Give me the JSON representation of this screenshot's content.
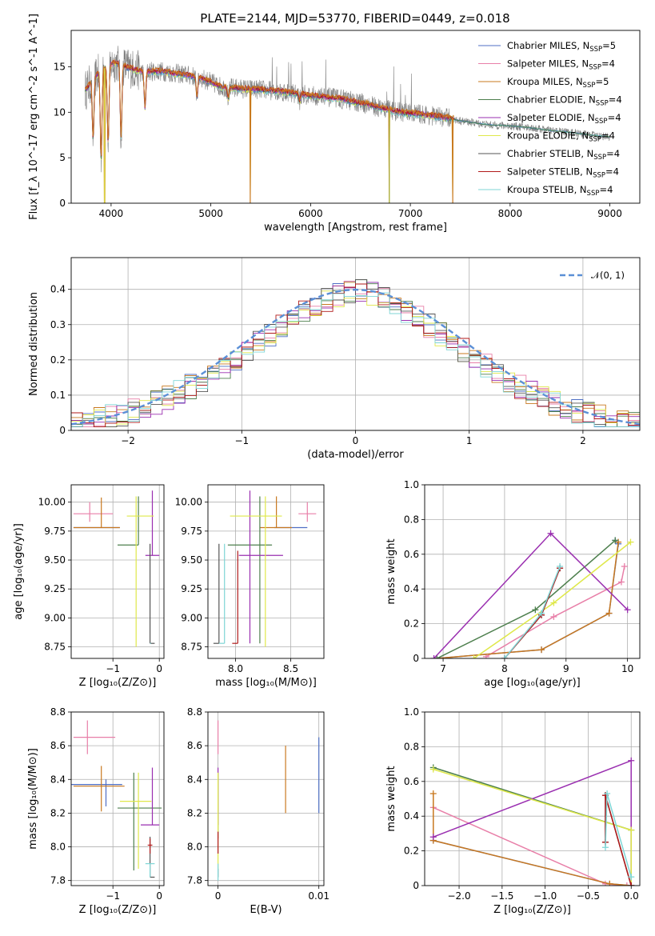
{
  "title": "PLATE=2144, MJD=53770, FIBERID=0449, z=0.018",
  "series_colors": [
    "#4f6fc4",
    "#e87fa8",
    "#c8781f",
    "#4d7f4d",
    "#9a2fb0",
    "#dfe84a",
    "#555555",
    "#b11a1a",
    "#7fd6d6"
  ],
  "series_names": [
    {
      "main": "Chabrier MILES, N",
      "sub": "SSP",
      "tail": "=5"
    },
    {
      "main": "Salpeter MILES, N",
      "sub": "SSP",
      "tail": "=4"
    },
    {
      "main": "Kroupa MILES, N",
      "sub": "SSP",
      "tail": "=5"
    },
    {
      "main": "Chabrier ELODIE, N",
      "sub": "SSP",
      "tail": "=4"
    },
    {
      "main": "Salpeter ELODIE, N",
      "sub": "SSP",
      "tail": "=4"
    },
    {
      "main": "Kroupa ELODIE, N",
      "sub": "SSP",
      "tail": "=4"
    },
    {
      "main": "Chabrier STELIB, N",
      "sub": "SSP",
      "tail": "=4"
    },
    {
      "main": "Salpeter STELIB, N",
      "sub": "SSP",
      "tail": "=4"
    },
    {
      "main": "Kroupa STELIB, N",
      "sub": "SSP",
      "tail": "=4"
    }
  ],
  "chart_data": [
    {
      "type": "line",
      "id": "spectrum",
      "xlabel": "wavelength [Angstrom, rest frame]",
      "ylabel": "Flux [f_λ 10^-17 erg cm^-2 s^-1 A^-1]",
      "xlim": [
        3600,
        9300
      ],
      "ylim": [
        0,
        19
      ],
      "xticks": [
        4000,
        5000,
        6000,
        7000,
        8000,
        9000
      ],
      "yticks": [
        0,
        5,
        10,
        15
      ],
      "legend": "top-right",
      "continuum": {
        "x": [
          3750,
          3850,
          3950,
          4050,
          4150,
          4300,
          4500,
          4700,
          4900,
          5100,
          5300,
          5500,
          5700,
          5900,
          6100,
          6300,
          6500,
          6700,
          6900,
          7100,
          7300,
          7420
        ],
        "y": [
          12.5,
          14.0,
          15.0,
          15.5,
          15.0,
          14.5,
          14.5,
          14.2,
          13.8,
          12.8,
          12.6,
          12.5,
          12.3,
          12.0,
          11.7,
          11.5,
          11.0,
          10.5,
          10.0,
          9.8,
          9.5,
          9.3
        ]
      },
      "model_tail": {
        "x": [
          7420,
          7600,
          7800,
          8000,
          8200,
          8400,
          8600,
          8800,
          9000
        ],
        "y": [
          9.2,
          8.9,
          8.6,
          8.5,
          8.3,
          8.0,
          7.8,
          7.5,
          7.3
        ]
      },
      "absorption_dips": [
        [
          3820,
          7.0
        ],
        [
          3900,
          4.8
        ],
        [
          3970,
          6.5
        ],
        [
          4100,
          7.2
        ],
        [
          4340,
          10.5
        ],
        [
          4861,
          11.8
        ],
        [
          5175,
          11.5
        ],
        [
          5890,
          11.2
        ],
        [
          6563,
          11.0
        ]
      ],
      "artifacts": [
        [
          3935,
          0
        ],
        [
          5395,
          0
        ],
        [
          6790,
          0
        ],
        [
          7425,
          0
        ]
      ]
    },
    {
      "type": "step",
      "id": "residuals",
      "xlabel": "(data-model)/error",
      "ylabel": "Normed distribution",
      "xlim": [
        -2.5,
        2.5
      ],
      "ylim": [
        0,
        0.49
      ],
      "xticks": [
        -2,
        -1,
        0,
        1,
        2
      ],
      "yticks": [
        0.0,
        0.1,
        0.2,
        0.3,
        0.4
      ],
      "bin_width": 0.1,
      "gaussian_label": "𝒩(0, 1)",
      "gaussian": {
        "mean": 0,
        "sigma": 1
      },
      "legend": "top-right"
    },
    {
      "type": "errorbar",
      "id": "age-vs-Z",
      "xlabel": "Z [log₁₀(Z/Z⊙)]",
      "ylabel": "age  [log₁₀(age/yr)]",
      "xlim": [
        -1.9,
        0.1
      ],
      "ylim": [
        8.65,
        10.15
      ],
      "xticks": [
        -1,
        0
      ],
      "yticks": [
        8.75,
        9.0,
        9.25,
        9.5,
        9.75,
        10.0
      ],
      "points": [
        {
          "s": 0,
          "x": -0.85,
          "y": 9.78,
          "ex": [
            1.0,
            0.0
          ],
          "ey": [
            0.0,
            0.0
          ]
        },
        {
          "s": 1,
          "x": -1.5,
          "y": 9.9,
          "ex": [
            0.35,
            0.5
          ],
          "ey": [
            0.07,
            0.1
          ]
        },
        {
          "s": 2,
          "x": -1.25,
          "y": 9.78,
          "ex": [
            0.6,
            0.4
          ],
          "ey": [
            0.0,
            0.26
          ]
        },
        {
          "s": 3,
          "x": -0.45,
          "y": 9.63,
          "ex": [
            0.45,
            0.0
          ],
          "ey": [
            0.0,
            0.42
          ]
        },
        {
          "s": 4,
          "x": -0.15,
          "y": 9.54,
          "ex": [
            0.15,
            0.15
          ],
          "ey": [
            0.0,
            0.56
          ]
        },
        {
          "s": 5,
          "x": -0.5,
          "y": 9.88,
          "ex": [
            0.2,
            0.38
          ],
          "ey": [
            1.13,
            0.17
          ]
        },
        {
          "s": 6,
          "x": -0.2,
          "y": 8.78,
          "ex": [
            0.0,
            0.1
          ],
          "ey": [
            0.0,
            0.86
          ]
        },
        {
          "s": 7,
          "x": -0.2,
          "y": 8.78,
          "ex": [
            0.0,
            0.0
          ],
          "ey": [
            0.0,
            0.0
          ]
        },
        {
          "s": 8,
          "x": -0.2,
          "y": 8.78,
          "ex": [
            0.0,
            0.02
          ],
          "ey": [
            0.0,
            0.0
          ]
        }
      ]
    },
    {
      "type": "errorbar",
      "id": "age-vs-mass",
      "xlabel": "mass [log₁₀(M/M⊙)]",
      "ylabel": "",
      "xlim": [
        7.75,
        8.8
      ],
      "ylim": [
        8.65,
        10.15
      ],
      "xticks": [
        8.0,
        8.5
      ],
      "yticks": [
        8.75,
        9.0,
        9.25,
        9.5,
        9.75,
        10.0
      ],
      "points": [
        {
          "s": 0,
          "x": 8.35,
          "y": 9.78,
          "ex": [
            0.0,
            0.3
          ],
          "ey": [
            0.0,
            0.0
          ]
        },
        {
          "s": 1,
          "x": 8.65,
          "y": 9.9,
          "ex": [
            0.08,
            0.08
          ],
          "ey": [
            0.07,
            0.1
          ]
        },
        {
          "s": 2,
          "x": 8.37,
          "y": 9.78,
          "ex": [
            0.15,
            0.14
          ],
          "ey": [
            0.0,
            0.27
          ]
        },
        {
          "s": 3,
          "x": 8.22,
          "y": 9.63,
          "ex": [
            0.29,
            0.11
          ],
          "ey": [
            0.85,
            0.42
          ]
        },
        {
          "s": 4,
          "x": 8.13,
          "y": 9.54,
          "ex": [
            0.1,
            0.3
          ],
          "ey": [
            0.76,
            0.56
          ]
        },
        {
          "s": 5,
          "x": 8.27,
          "y": 9.88,
          "ex": [
            0.32,
            0.15
          ],
          "ey": [
            1.13,
            0.17
          ]
        },
        {
          "s": 6,
          "x": 7.85,
          "y": 8.78,
          "ex": [
            0.05,
            0.0
          ],
          "ey": [
            0.0,
            0.86
          ]
        },
        {
          "s": 7,
          "x": 8.02,
          "y": 8.78,
          "ex": [
            0.05,
            0.0
          ],
          "ey": [
            0.0,
            0.8
          ]
        },
        {
          "s": 8,
          "x": 7.9,
          "y": 8.78,
          "ex": [
            0.05,
            0.0
          ],
          "ey": [
            0.0,
            0.86
          ]
        }
      ]
    },
    {
      "type": "line",
      "id": "massweight-vs-age",
      "xlabel": "age  [log₁₀(age/yr)]",
      "ylabel": "mass weight",
      "xlim": [
        6.7,
        10.2
      ],
      "ylim": [
        0,
        1.0
      ],
      "xticks": [
        7,
        8,
        9,
        10
      ],
      "yticks": [
        0.0,
        0.2,
        0.4,
        0.6,
        0.8,
        1.0
      ],
      "series": [
        {
          "s": 0,
          "x": [
            6.9,
            8.6,
            9.7,
            9.85,
            9.8
          ],
          "y": [
            0.0,
            0.05,
            0.26,
            0.66,
            0.68
          ]
        },
        {
          "s": 1,
          "x": [
            7.7,
            8.8,
            9.9,
            9.95
          ],
          "y": [
            0.01,
            0.24,
            0.44,
            0.53
          ]
        },
        {
          "s": 2,
          "x": [
            6.9,
            8.6,
            9.7,
            9.85
          ],
          "y": [
            0.0,
            0.05,
            0.26,
            0.67
          ]
        },
        {
          "s": 3,
          "x": [
            6.9,
            8.5,
            9.8
          ],
          "y": [
            0.0,
            0.28,
            0.68
          ]
        },
        {
          "s": 4,
          "x": [
            6.85,
            8.75,
            10.0
          ],
          "y": [
            0.0,
            0.72,
            0.28
          ]
        },
        {
          "s": 5,
          "x": [
            7.5,
            8.8,
            10.05
          ],
          "y": [
            0.0,
            0.32,
            0.67
          ]
        },
        {
          "s": 6,
          "x": [
            8.0,
            8.6,
            8.9
          ],
          "y": [
            0.0,
            0.25,
            0.52
          ]
        },
        {
          "s": 7,
          "x": [
            8.0,
            8.6,
            8.9
          ],
          "y": [
            0.0,
            0.25,
            0.52
          ]
        },
        {
          "s": 8,
          "x": [
            8.0,
            8.6,
            8.9
          ],
          "y": [
            0.0,
            0.26,
            0.53
          ]
        }
      ]
    },
    {
      "type": "errorbar",
      "id": "mass-vs-Z",
      "xlabel": "Z [log₁₀(Z/Z⊙)]",
      "ylabel": "mass [log₁₀(M/M⊙)]",
      "xlim": [
        -1.9,
        0.1
      ],
      "ylim": [
        7.77,
        8.8
      ],
      "xticks": [
        -1,
        0
      ],
      "yticks": [
        7.8,
        8.0,
        8.2,
        8.4,
        8.6,
        8.8
      ],
      "points": [
        {
          "s": 0,
          "x": -1.15,
          "y": 8.37,
          "ex": [
            0.75,
            0.35
          ],
          "ey": [
            0.13,
            0.03
          ]
        },
        {
          "s": 1,
          "x": -1.55,
          "y": 8.65,
          "ex": [
            0.3,
            0.6
          ],
          "ey": [
            0.1,
            0.1
          ]
        },
        {
          "s": 2,
          "x": -1.25,
          "y": 8.36,
          "ex": [
            0.6,
            0.5
          ],
          "ey": [
            0.15,
            0.12
          ]
        },
        {
          "s": 3,
          "x": -0.55,
          "y": 8.23,
          "ex": [
            0.35,
            0.6
          ],
          "ey": [
            0.37,
            0.21
          ]
        },
        {
          "s": 4,
          "x": -0.15,
          "y": 8.13,
          "ex": [
            0.25,
            0.15
          ],
          "ey": [
            0.0,
            0.34
          ]
        },
        {
          "s": 5,
          "x": -0.45,
          "y": 8.27,
          "ex": [
            0.4,
            0.28
          ],
          "ey": [
            0.4,
            0.17
          ]
        },
        {
          "s": 6,
          "x": -0.2,
          "y": 7.82,
          "ex": [
            0.0,
            0.1
          ],
          "ey": [
            0.0,
            0.24
          ]
        },
        {
          "s": 7,
          "x": -0.2,
          "y": 8.01,
          "ex": [
            0.05,
            0.05
          ],
          "ey": [
            0.05,
            0.04
          ]
        },
        {
          "s": 8,
          "x": -0.2,
          "y": 7.9,
          "ex": [
            0.1,
            0.1
          ],
          "ey": [
            0.08,
            0.0
          ]
        }
      ]
    },
    {
      "type": "errorbar",
      "id": "mass-vs-EBV",
      "xlabel": "E(B-V)",
      "ylabel": "",
      "xlim": [
        -0.001,
        0.0105
      ],
      "ylim": [
        7.77,
        8.8
      ],
      "xticks": [
        0.0,
        0.01
      ],
      "yticks": [
        7.8,
        8.0,
        8.2,
        8.4,
        8.6,
        8.8
      ],
      "points": [
        {
          "s": 0,
          "x": 0.01,
          "y": 8.4,
          "ex": [
            0,
            0
          ],
          "ey": [
            0.2,
            0.25
          ]
        },
        {
          "s": 1,
          "x": 0.0,
          "y": 8.65,
          "ex": [
            0,
            0
          ],
          "ey": [
            0.1,
            0.1
          ]
        },
        {
          "s": 2,
          "x": 0.0067,
          "y": 8.4,
          "ex": [
            0,
            0
          ],
          "ey": [
            0.2,
            0.2
          ]
        },
        {
          "s": 3,
          "x": 0.0,
          "y": 8.23,
          "ex": [
            0,
            0
          ],
          "ey": [
            0.18,
            0.21
          ]
        },
        {
          "s": 4,
          "x": 0.0,
          "y": 8.13,
          "ex": [
            0,
            0
          ],
          "ey": [
            0.0,
            0.34
          ]
        },
        {
          "s": 5,
          "x": 0.0,
          "y": 8.27,
          "ex": [
            0,
            0
          ],
          "ey": [
            0.4,
            0.17
          ]
        },
        {
          "s": 6,
          "x": 0.0,
          "y": 7.82,
          "ex": [
            0,
            0
          ],
          "ey": [
            0.0,
            0.05
          ]
        },
        {
          "s": 7,
          "x": 0.0,
          "y": 8.01,
          "ex": [
            0,
            0
          ],
          "ey": [
            0.05,
            0.08
          ]
        },
        {
          "s": 8,
          "x": 0.0,
          "y": 7.9,
          "ex": [
            0,
            0
          ],
          "ey": [
            0.1,
            0.0
          ]
        }
      ]
    },
    {
      "type": "line",
      "id": "massweight-vs-Z",
      "xlabel": "Z [log₁₀(Z/Z⊙)]",
      "ylabel": "mass weight",
      "xlim": [
        -2.4,
        0.1
      ],
      "ylim": [
        0,
        1.0
      ],
      "xticks": [
        -2.0,
        -1.5,
        -1.0,
        -0.5,
        0.0
      ],
      "xticklabels": [
        "−2.0",
        "−1.5",
        "−1.0",
        "−0.5",
        "0.0"
      ],
      "yticks": [
        0.0,
        0.2,
        0.4,
        0.6,
        0.8,
        1.0
      ],
      "series": [
        {
          "s": 0,
          "x": [
            -2.3,
            -0.25,
            0.0
          ],
          "y": [
            0.26,
            0.01,
            0.0
          ]
        },
        {
          "s": 1,
          "x": [
            -2.3,
            -0.3,
            -0.05,
            0.0
          ],
          "y": [
            0.45,
            0.01,
            0.0,
            0.0
          ]
        },
        {
          "s": 2,
          "x": [
            -2.3,
            -2.3,
            -0.25,
            0.0
          ],
          "y": [
            0.53,
            0.26,
            0.01,
            0.0
          ]
        },
        {
          "s": 3,
          "x": [
            -2.3,
            0.0,
            0.0
          ],
          "y": [
            0.68,
            0.32,
            0.0
          ]
        },
        {
          "s": 4,
          "x": [
            -2.3,
            0.0,
            0.0
          ],
          "y": [
            0.28,
            0.72,
            0.0
          ]
        },
        {
          "s": 5,
          "x": [
            -2.3,
            0.0,
            0.0
          ],
          "y": [
            0.67,
            0.32,
            0.0
          ]
        },
        {
          "s": 6,
          "x": [
            -0.3,
            -0.3,
            0.0
          ],
          "y": [
            0.25,
            0.52,
            0.0
          ]
        },
        {
          "s": 7,
          "x": [
            -0.3,
            -0.3,
            0.0
          ],
          "y": [
            0.25,
            0.52,
            0.0
          ]
        },
        {
          "s": 8,
          "x": [
            -0.3,
            -0.28,
            0.0
          ],
          "y": [
            0.22,
            0.53,
            0.05
          ]
        }
      ]
    }
  ]
}
